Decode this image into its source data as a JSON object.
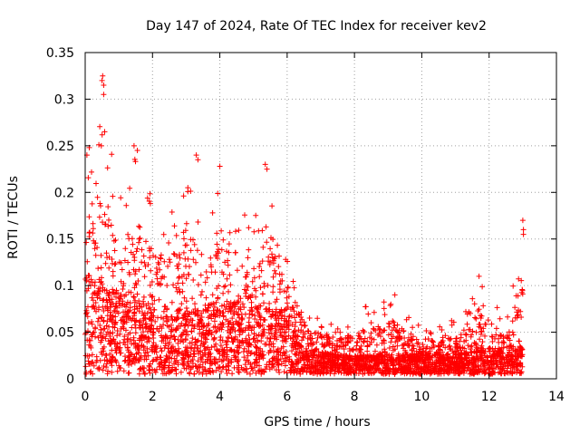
{
  "chart_data": {
    "type": "scatter",
    "title": "Day 147 of 2024, Rate Of TEC Index for receiver kev2",
    "xlabel": "GPS time / hours",
    "ylabel": "ROTI / TECUs",
    "xlim": [
      0,
      14
    ],
    "ylim": [
      0,
      0.35
    ],
    "x_ticks": [
      0,
      2,
      4,
      6,
      8,
      10,
      12,
      14
    ],
    "y_ticks": [
      0,
      0.05,
      0.1,
      0.15,
      0.2,
      0.25,
      0.3,
      0.35
    ],
    "x_tick_labels": [
      "0",
      "2",
      "4",
      "6",
      "8",
      "10",
      "12",
      "14"
    ],
    "y_tick_labels": [
      "0",
      "0.05",
      "0.1",
      "0.15",
      "0.2",
      "0.25",
      "0.3",
      "0.35"
    ],
    "grid": true,
    "marker": "+",
    "series": [
      {
        "name": "ROTI",
        "color": "#ff0000",
        "envelope": [
          {
            "x": 0.0,
            "max": 0.24,
            "typ": 0.08
          },
          {
            "x": 0.5,
            "max": 0.32,
            "typ": 0.07
          },
          {
            "x": 1.0,
            "max": 0.2,
            "typ": 0.06
          },
          {
            "x": 1.5,
            "max": 0.25,
            "typ": 0.06
          },
          {
            "x": 2.0,
            "max": 0.2,
            "typ": 0.05
          },
          {
            "x": 2.5,
            "max": 0.19,
            "typ": 0.05
          },
          {
            "x": 3.0,
            "max": 0.2,
            "typ": 0.05
          },
          {
            "x": 3.3,
            "max": 0.24,
            "typ": 0.05
          },
          {
            "x": 3.5,
            "max": 0.16,
            "typ": 0.05
          },
          {
            "x": 4.0,
            "max": 0.22,
            "typ": 0.06
          },
          {
            "x": 4.5,
            "max": 0.19,
            "typ": 0.06
          },
          {
            "x": 5.0,
            "max": 0.17,
            "typ": 0.06
          },
          {
            "x": 5.4,
            "max": 0.23,
            "typ": 0.05
          },
          {
            "x": 6.0,
            "max": 0.14,
            "typ": 0.05
          },
          {
            "x": 6.5,
            "max": 0.08,
            "typ": 0.02
          },
          {
            "x": 7.5,
            "max": 0.06,
            "typ": 0.015
          },
          {
            "x": 9.2,
            "max": 0.09,
            "typ": 0.015
          },
          {
            "x": 10.0,
            "max": 0.05,
            "typ": 0.015
          },
          {
            "x": 11.0,
            "max": 0.06,
            "typ": 0.015
          },
          {
            "x": 11.7,
            "max": 0.11,
            "typ": 0.02
          },
          {
            "x": 12.5,
            "max": 0.06,
            "typ": 0.02
          },
          {
            "x": 13.0,
            "max": 0.17,
            "typ": 0.02
          }
        ],
        "outliers": [
          {
            "x": 0.05,
            "y": 0.24
          },
          {
            "x": 0.12,
            "y": 0.248
          },
          {
            "x": 0.5,
            "y": 0.32
          },
          {
            "x": 0.52,
            "y": 0.325
          },
          {
            "x": 0.55,
            "y": 0.315
          },
          {
            "x": 0.55,
            "y": 0.305
          },
          {
            "x": 0.58,
            "y": 0.265
          },
          {
            "x": 0.48,
            "y": 0.25
          },
          {
            "x": 1.45,
            "y": 0.25
          },
          {
            "x": 1.55,
            "y": 0.245
          },
          {
            "x": 3.3,
            "y": 0.24
          },
          {
            "x": 3.35,
            "y": 0.235
          },
          {
            "x": 5.35,
            "y": 0.23
          },
          {
            "x": 5.4,
            "y": 0.225
          },
          {
            "x": 4.0,
            "y": 0.228
          },
          {
            "x": 9.2,
            "y": 0.09
          },
          {
            "x": 11.7,
            "y": 0.11
          },
          {
            "x": 13.0,
            "y": 0.17
          },
          {
            "x": 13.02,
            "y": 0.16
          },
          {
            "x": 13.02,
            "y": 0.155
          }
        ]
      }
    ]
  }
}
